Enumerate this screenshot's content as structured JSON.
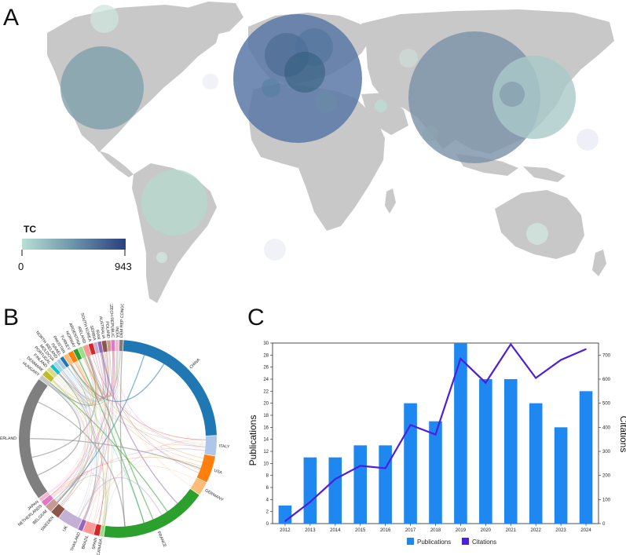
{
  "panels": {
    "a": "A",
    "b": "B",
    "c": "C"
  },
  "chart_data": [
    {
      "type": "bubble-map",
      "legend": {
        "title": "TC",
        "min_label": "0",
        "max_label": "943",
        "color_low": "#b9e0d4",
        "color_high": "#2b3f7e"
      },
      "bubbles": [
        {
          "region": "Western Europe",
          "relative_size": "largest",
          "color": "#5a78a6"
        },
        {
          "region": "China",
          "relative_size": "large",
          "color": "#7d94a8"
        },
        {
          "region": "Japan / Korea",
          "relative_size": "medium",
          "color": "#a9c9c9"
        },
        {
          "region": "USA",
          "relative_size": "medium",
          "color": "#80a0ad"
        },
        {
          "region": "Brazil",
          "relative_size": "small",
          "color": "#b6d8cc"
        },
        {
          "region": "Canada",
          "relative_size": "tiny",
          "color": "#cfe6dd"
        },
        {
          "region": "India",
          "relative_size": "tiny",
          "color": "#cfe6dd"
        },
        {
          "region": "Australia",
          "relative_size": "tiny",
          "color": "#cfe6dd"
        }
      ]
    },
    {
      "type": "chord",
      "countries": [
        "CHINA",
        "ITALY",
        "USA",
        "GERMANY",
        "FRANCE",
        "CANADA",
        "SPAIN",
        "BRAZIL",
        "THAILAND",
        "UK",
        "SWEDEN",
        "BELGIUM",
        "NETHERLANDS",
        "JAPAN",
        "SWITZERLAND",
        "HUNGARY",
        "DENMARK",
        "FINLAND",
        "PORTUGAL",
        "MOLDOVA",
        "NORTH IRELAND",
        "ISRAEL",
        "PAKISTAN",
        "TURKEY",
        "NORWAY",
        "ARGENTINA",
        "IRELAND",
        "SOUTH KOREA",
        "SERBIA",
        "IRAN",
        "AUSTRALIA",
        "POLAND",
        "CZECH REPUBLIC",
        "INDIA",
        "DEM REP CONGO"
      ],
      "colors": [
        "#1f77b4",
        "#aec7e8",
        "#ff7f0e",
        "#ffbb78",
        "#2ca02c",
        "#98df8a",
        "#d62728",
        "#ff9896",
        "#9467bd",
        "#c5b0d5",
        "#8c564b",
        "#c49c94",
        "#e377c2",
        "#f7b6d2",
        "#7f7f7f",
        "#c7c7c7",
        "#bcbd22",
        "#dbdb8d",
        "#17becf",
        "#9edae5",
        "#aec7e8",
        "#1f77b4",
        "#ffbb78",
        "#ff7f0e",
        "#2ca02c",
        "#98df8a",
        "#ff9896",
        "#d62728",
        "#c5b0d5",
        "#9467bd",
        "#8c564b",
        "#c49c94",
        "#e377c2",
        "#f7b6d2",
        "#7f7f7f"
      ],
      "weights": [
        16,
        2.2,
        3,
        1.5,
        12,
        0.4,
        0.6,
        1.2,
        0.5,
        2.4,
        1,
        0.8,
        0.6,
        0.4,
        14,
        0.5,
        0.6,
        0.5,
        0.4,
        0.4,
        0.4,
        0.4,
        0.5,
        0.6,
        0.5,
        0.5,
        0.6,
        0.5,
        0.4,
        0.4,
        0.5,
        0.4,
        0.4,
        0.4,
        0.4
      ]
    },
    {
      "type": "bar+line",
      "categories": [
        "2012",
        "2013",
        "2014",
        "2015",
        "2016",
        "2017",
        "2018",
        "2019",
        "2020",
        "2021",
        "2022",
        "2023",
        "2024"
      ],
      "series": [
        {
          "name": "Publications",
          "type": "bar",
          "axis": "left",
          "color": "#1e87f0",
          "values": [
            3,
            11,
            11,
            13,
            13,
            20,
            17,
            30,
            24,
            24,
            20,
            16,
            22
          ]
        },
        {
          "name": "Citations",
          "type": "line",
          "axis": "right",
          "color": "#4b1ee0",
          "values": [
            10,
            90,
            185,
            240,
            230,
            410,
            370,
            685,
            585,
            745,
            605,
            680,
            725
          ]
        }
      ],
      "ylabel": "Publications",
      "y2label": "Citations",
      "ylim": [
        0,
        30
      ],
      "y2lim": [
        0,
        750
      ],
      "yticks": [
        0,
        2,
        4,
        6,
        8,
        10,
        12,
        14,
        16,
        18,
        20,
        22,
        24,
        26,
        28,
        30
      ],
      "y2ticks": [
        0,
        100,
        200,
        300,
        400,
        500,
        600,
        700
      ],
      "legend": [
        "Publications",
        "Citations"
      ]
    }
  ]
}
